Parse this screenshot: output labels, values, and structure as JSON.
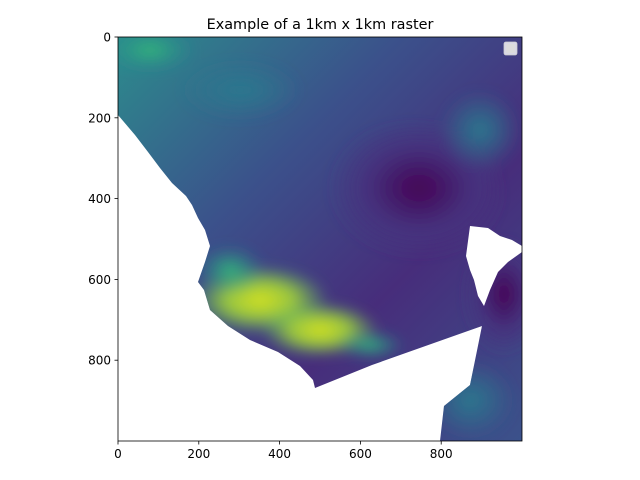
{
  "chart_data": {
    "type": "heatmap",
    "title": "Example of a 1km x 1km raster",
    "xlabel": "",
    "ylabel": "",
    "xlim": [
      0,
      1000
    ],
    "ylim": [
      1000,
      0
    ],
    "xticks": [
      0,
      200,
      400,
      600,
      800
    ],
    "yticks": [
      0,
      200,
      400,
      600,
      800
    ],
    "grid": false,
    "legend": {
      "placement": "top-right",
      "entries": []
    },
    "colormap": "viridis",
    "colors": {
      "low": "#440154",
      "mid": "#31688e",
      "high": "#d6e21f",
      "nodata": "#ffffff"
    }
  }
}
